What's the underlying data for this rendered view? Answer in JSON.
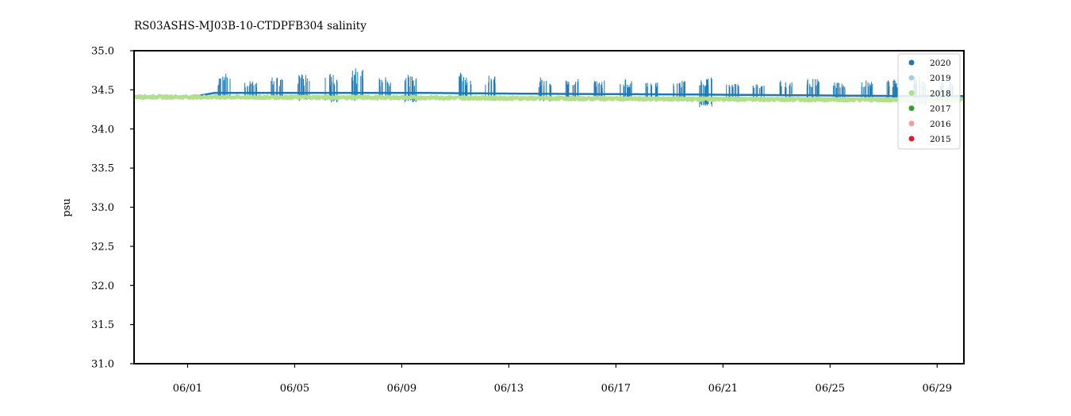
{
  "chart_data": {
    "type": "scatter",
    "title": "RS03ASHS-MJ03B-10-CTDPFB304 salinity",
    "xlabel": "",
    "ylabel": "psu",
    "x_domain": [
      "05/30",
      "06/30"
    ],
    "ylim": [
      31.0,
      35.0
    ],
    "y_ticks": [
      31.0,
      31.5,
      32.0,
      32.5,
      33.0,
      33.5,
      34.0,
      34.5,
      35.0
    ],
    "y_tick_labels": [
      "31.0",
      "31.5",
      "32.0",
      "32.5",
      "33.0",
      "33.5",
      "34.0",
      "34.5",
      "35.0"
    ],
    "x_ticks": [
      "06/01",
      "06/05",
      "06/09",
      "06/13",
      "06/17",
      "06/21",
      "06/25",
      "06/29"
    ],
    "grid": false,
    "legend_position": "top-right",
    "series": [
      {
        "name": "2020",
        "color": "#1f78b4",
        "baseline": [
          [
            "06/01",
            34.4
          ],
          [
            "06/02",
            34.46
          ],
          [
            "06/10",
            34.46
          ],
          [
            "06/14",
            34.45
          ],
          [
            "06/20",
            34.44
          ],
          [
            "06/24",
            34.43
          ],
          [
            "06/28",
            34.42
          ],
          [
            "06/30",
            34.42
          ]
        ],
        "spikes": [
          {
            "x": "06/02",
            "lo": 34.38,
            "hi": 34.72
          },
          {
            "x": "06/03",
            "lo": 34.4,
            "hi": 34.62
          },
          {
            "x": "06/04",
            "lo": 34.38,
            "hi": 34.66
          },
          {
            "x": "06/05",
            "lo": 34.36,
            "hi": 34.7
          },
          {
            "x": "06/06",
            "lo": 34.34,
            "hi": 34.72
          },
          {
            "x": "06/07",
            "lo": 34.36,
            "hi": 34.78
          },
          {
            "x": "06/08",
            "lo": 34.38,
            "hi": 34.68
          },
          {
            "x": "06/09",
            "lo": 34.34,
            "hi": 34.7
          },
          {
            "x": "06/11",
            "lo": 34.38,
            "hi": 34.72
          },
          {
            "x": "06/12",
            "lo": 34.36,
            "hi": 34.68
          },
          {
            "x": "06/14",
            "lo": 34.35,
            "hi": 34.66
          },
          {
            "x": "06/15",
            "lo": 34.36,
            "hi": 34.64
          },
          {
            "x": "06/16",
            "lo": 34.38,
            "hi": 34.62
          },
          {
            "x": "06/17",
            "lo": 34.36,
            "hi": 34.64
          },
          {
            "x": "06/18",
            "lo": 34.38,
            "hi": 34.6
          },
          {
            "x": "06/19",
            "lo": 34.35,
            "hi": 34.62
          },
          {
            "x": "06/20",
            "lo": 34.28,
            "hi": 34.66
          },
          {
            "x": "06/21",
            "lo": 34.38,
            "hi": 34.58
          },
          {
            "x": "06/22",
            "lo": 34.4,
            "hi": 34.58
          },
          {
            "x": "06/23",
            "lo": 34.4,
            "hi": 34.62
          },
          {
            "x": "06/24",
            "lo": 34.38,
            "hi": 34.64
          },
          {
            "x": "06/25",
            "lo": 34.38,
            "hi": 34.6
          },
          {
            "x": "06/26",
            "lo": 34.38,
            "hi": 34.62
          },
          {
            "x": "06/27",
            "lo": 34.36,
            "hi": 34.64
          },
          {
            "x": "06/28",
            "lo": 34.3,
            "hi": 34.68
          },
          {
            "x": "06/29",
            "lo": 34.36,
            "hi": 34.62
          }
        ]
      },
      {
        "name": "2019",
        "color": "#a6cee3",
        "baseline": [
          [
            "05/30",
            34.42
          ],
          [
            "06/30",
            34.39
          ]
        ],
        "spikes": []
      },
      {
        "name": "2018",
        "color": "#b2df8a",
        "baseline": [
          [
            "05/30",
            34.41
          ],
          [
            "06/10",
            34.4
          ],
          [
            "06/20",
            34.38
          ],
          [
            "06/30",
            34.37
          ]
        ],
        "band": 0.04,
        "spikes": []
      },
      {
        "name": "2017",
        "color": "#33a02c",
        "baseline": [],
        "spikes": []
      },
      {
        "name": "2016",
        "color": "#fb9a99",
        "baseline": [],
        "spikes": []
      },
      {
        "name": "2015",
        "color": "#e31a1c",
        "baseline": [],
        "spikes": []
      }
    ]
  }
}
